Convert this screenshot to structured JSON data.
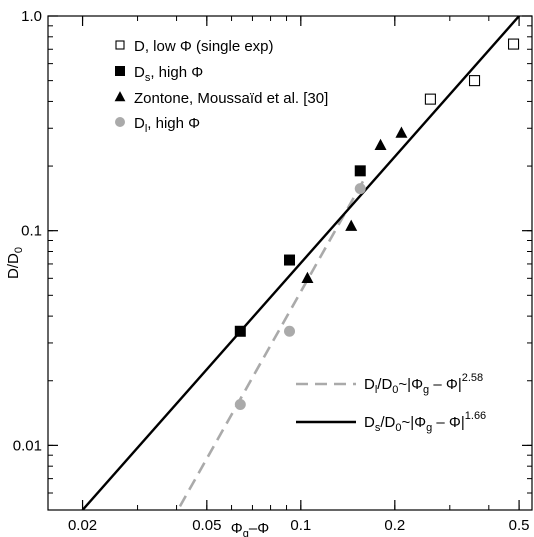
{
  "chart_data": {
    "type": "scatter",
    "xscale": "log",
    "yscale": "log",
    "xlim": [
      0.0155,
      0.55
    ],
    "ylim": [
      0.005,
      1.0
    ],
    "xlabel": "Φg–Φ",
    "ylabel": "D/D0",
    "xticks": [
      {
        "value": 0.02,
        "label": "0.02"
      },
      {
        "value": 0.05,
        "label": "0.05"
      },
      {
        "value": 0.1,
        "label": "0.1"
      },
      {
        "value": 0.2,
        "label": "0.2"
      },
      {
        "value": 0.5,
        "label": "0.5"
      }
    ],
    "yticks": [
      {
        "value": 0.01,
        "label": "0.01"
      },
      {
        "value": 0.1,
        "label": "0.1"
      },
      {
        "value": 1.0,
        "label": "1.0"
      }
    ],
    "grid": false,
    "legend_position": "top-left",
    "series": [
      {
        "name": "D, low Φ (single exp)",
        "marker": "open-square",
        "color": "#000000",
        "points": [
          [
            0.26,
            0.41
          ],
          [
            0.36,
            0.5
          ],
          [
            0.48,
            0.74
          ]
        ]
      },
      {
        "name": "Ds, high Φ",
        "marker": "filled-square",
        "color": "#000000",
        "points": [
          [
            0.064,
            0.034
          ],
          [
            0.092,
            0.073
          ],
          [
            0.155,
            0.19
          ]
        ]
      },
      {
        "name": "Zontone, Moussaïd et al. [30]",
        "marker": "filled-triangle",
        "color": "#000000",
        "points": [
          [
            0.105,
            0.06
          ],
          [
            0.145,
            0.105
          ],
          [
            0.18,
            0.25
          ],
          [
            0.21,
            0.285
          ]
        ]
      },
      {
        "name": "Dl, high Φ",
        "marker": "filled-circle",
        "color": "#aaaaaa",
        "points": [
          [
            0.064,
            0.0155
          ],
          [
            0.092,
            0.034
          ],
          [
            0.155,
            0.157
          ]
        ]
      }
    ],
    "fits": [
      {
        "name": "Dl/D0~|Φg – Φ|2.58",
        "style": "dashed",
        "color": "#aaaaaa",
        "exponent": 2.58,
        "points": [
          [
            0.041,
            0.0052
          ],
          [
            0.16,
            0.175
          ]
        ]
      },
      {
        "name": "Ds/D0~|Φg – Φ|1.66",
        "style": "solid",
        "color": "#000000",
        "exponent": 1.66,
        "points": [
          [
            0.02,
            0.005
          ],
          [
            0.5,
            1.0
          ]
        ]
      }
    ],
    "legend_labels": [
      {
        "base": "D",
        "sub": "",
        "rest": ", low Φ (single exp)"
      },
      {
        "base": "D",
        "sub": "s",
        "rest": ", high Φ"
      },
      {
        "base": "Zontone, Moussaïd et al. [30]",
        "sub": "",
        "rest": ""
      },
      {
        "base": "D",
        "sub": "l",
        "rest": ", high Φ"
      }
    ],
    "fit_labels": [
      {
        "base": "D",
        "sub": "l",
        "mid": "/D",
        "sub2": "0",
        "mid2": "~|Φ",
        "sub3": "g",
        "end": " – Φ|",
        "sup": "2.58"
      },
      {
        "base": "D",
        "sub": "s",
        "mid": "/D",
        "sub2": "0",
        "mid2": "~|Φ",
        "sub3": "g",
        "end": " – Φ|",
        "sup": "1.66"
      }
    ]
  }
}
